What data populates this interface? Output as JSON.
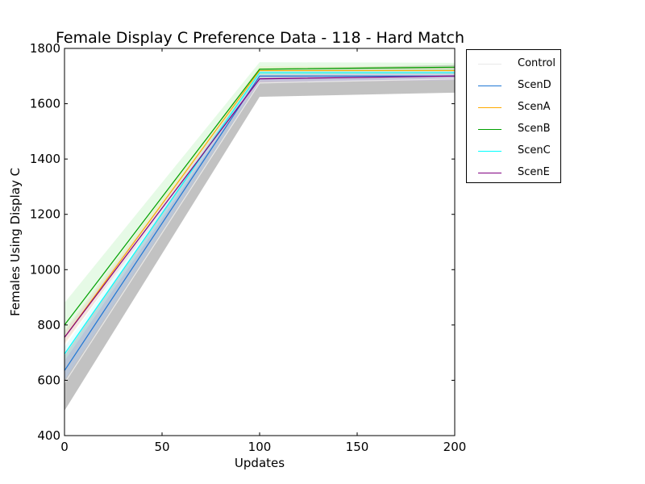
{
  "chart_data": {
    "type": "line",
    "title": "Female Display C Preference Data - 118 - Hard Match",
    "xlabel": "Updates",
    "ylabel": "Females Using Display C",
    "xlim": [
      0,
      200
    ],
    "ylim": [
      400,
      1800
    ],
    "xticks": [
      0,
      50,
      100,
      150,
      200
    ],
    "yticks": [
      400,
      600,
      800,
      1000,
      1200,
      1400,
      1600,
      1800
    ],
    "grid": false,
    "legend_position": "outside-top-right",
    "x": [
      0,
      100,
      200
    ],
    "series": [
      {
        "name": "Control",
        "values": [
          590,
          1675,
          1690
        ],
        "color": "#e8e8e8",
        "band": [
          [
            490,
            690
          ],
          [
            1625,
            1725
          ],
          [
            1640,
            1740
          ]
        ],
        "band_color": "#999999"
      },
      {
        "name": "ScenD",
        "values": [
          635,
          1700,
          1700
        ],
        "color": "#1f77d4",
        "band": [
          [
            600,
            670
          ],
          [
            1680,
            1720
          ],
          [
            1685,
            1718
          ]
        ],
        "band_color": "#aaccff"
      },
      {
        "name": "ScenA",
        "values": [
          755,
          1720,
          1720
        ],
        "color": "#ffaa00",
        "band": [
          [
            730,
            780
          ],
          [
            1705,
            1735
          ],
          [
            1705,
            1735
          ]
        ],
        "band_color": "#ffe0a0"
      },
      {
        "name": "ScenB",
        "values": [
          800,
          1725,
          1732
        ],
        "color": "#00a000",
        "band": [
          [
            760,
            880
          ],
          [
            1700,
            1750
          ],
          [
            1715,
            1748
          ]
        ],
        "band_color": "#b8f0b8"
      },
      {
        "name": "ScenC",
        "values": [
          695,
          1712,
          1712
        ],
        "color": "#00ffff",
        "band": [
          [
            670,
            720
          ],
          [
            1700,
            1725
          ],
          [
            1700,
            1725
          ]
        ],
        "band_color": "#b8ffff"
      },
      {
        "name": "ScenE",
        "values": [
          755,
          1690,
          1700
        ],
        "color": "#800080",
        "band": [
          [
            735,
            775
          ],
          [
            1675,
            1705
          ],
          [
            1685,
            1712
          ]
        ],
        "band_color": "#e0c0e0"
      }
    ]
  }
}
